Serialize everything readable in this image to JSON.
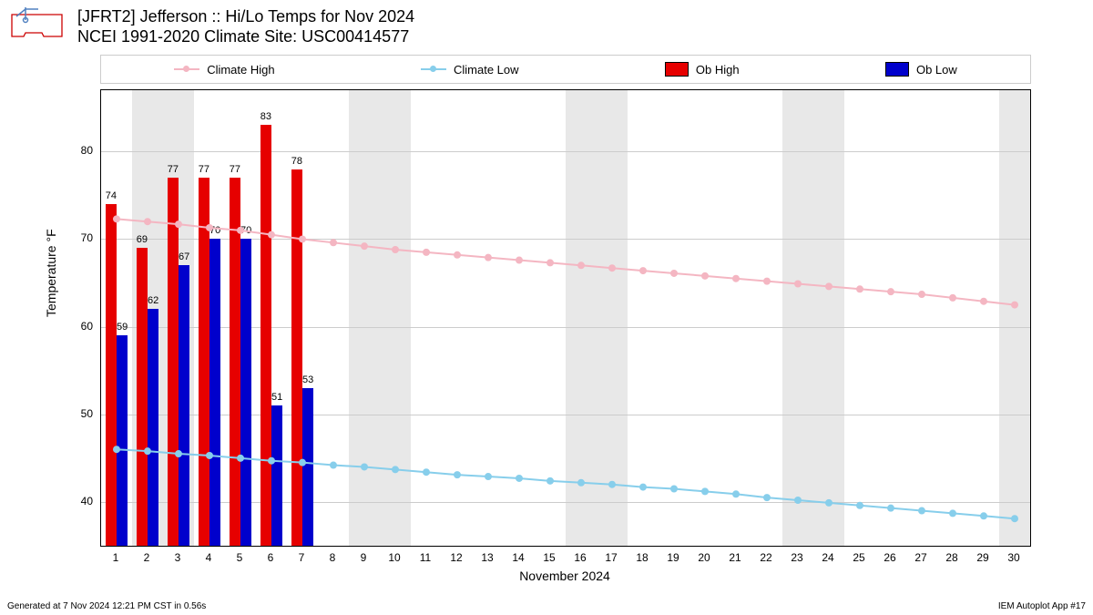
{
  "title_line1": "[JFRT2] Jefferson :: Hi/Lo Temps for Nov 2024",
  "title_line2": "NCEI 1991-2020 Climate Site: USC00414577",
  "footer_left": "Generated at 7 Nov 2024 12:21 PM CST in 0.56s",
  "footer_right": "IEM Autoplot App #17",
  "ylabel": "Temperature °F",
  "xlabel": "November 2024",
  "legend": {
    "climate_high": "Climate High",
    "climate_low": "Climate Low",
    "ob_high": "Ob High",
    "ob_low": "Ob Low"
  },
  "chart": {
    "type": "bar+line",
    "ylim": [
      35,
      87
    ],
    "yticks": [
      40,
      50,
      60,
      70,
      80
    ],
    "xlim": [
      0.5,
      30.5
    ],
    "xticks": [
      1,
      2,
      3,
      4,
      5,
      6,
      7,
      8,
      9,
      10,
      11,
      12,
      13,
      14,
      15,
      16,
      17,
      18,
      19,
      20,
      21,
      22,
      23,
      24,
      25,
      26,
      27,
      28,
      29,
      30
    ],
    "weekends": [
      [
        1.5,
        3.5
      ],
      [
        8.5,
        10.5
      ],
      [
        15.5,
        17.5
      ],
      [
        22.5,
        24.5
      ],
      [
        29.5,
        30.5
      ]
    ],
    "colors": {
      "climate_high": "#f4b6c2",
      "climate_low": "#87ceeb",
      "ob_high": "#e60000",
      "ob_low": "#0000cc",
      "grid": "#cccccc",
      "weekend": "#e8e8e8",
      "background": "#ffffff"
    },
    "bar_width": 0.34,
    "ob_high": [
      {
        "day": 1,
        "val": 74
      },
      {
        "day": 2,
        "val": 69
      },
      {
        "day": 3,
        "val": 77
      },
      {
        "day": 4,
        "val": 77
      },
      {
        "day": 5,
        "val": 77
      },
      {
        "day": 6,
        "val": 83
      },
      {
        "day": 7,
        "val": 78
      }
    ],
    "ob_low": [
      {
        "day": 1,
        "val": 59
      },
      {
        "day": 2,
        "val": 62
      },
      {
        "day": 3,
        "val": 67
      },
      {
        "day": 4,
        "val": 70
      },
      {
        "day": 5,
        "val": 70
      },
      {
        "day": 6,
        "val": 51
      },
      {
        "day": 7,
        "val": 53
      }
    ],
    "climate_high": [
      72.3,
      72.0,
      71.7,
      71.3,
      71.0,
      70.5,
      70.0,
      69.6,
      69.2,
      68.8,
      68.5,
      68.2,
      67.9,
      67.6,
      67.3,
      67.0,
      66.7,
      66.4,
      66.1,
      65.8,
      65.5,
      65.2,
      64.9,
      64.6,
      64.3,
      64.0,
      63.7,
      63.3,
      62.9,
      62.5
    ],
    "climate_low": [
      46.0,
      45.8,
      45.5,
      45.3,
      45.0,
      44.7,
      44.5,
      44.2,
      44.0,
      43.7,
      43.4,
      43.1,
      42.9,
      42.7,
      42.4,
      42.2,
      42.0,
      41.7,
      41.5,
      41.2,
      40.9,
      40.5,
      40.2,
      39.9,
      39.6,
      39.3,
      39.0,
      38.7,
      38.4,
      38.1
    ],
    "marker_radius": 4,
    "line_width": 2,
    "label_fontsize": 11,
    "axis_fontsize": 12,
    "title_fontsize": 18
  }
}
